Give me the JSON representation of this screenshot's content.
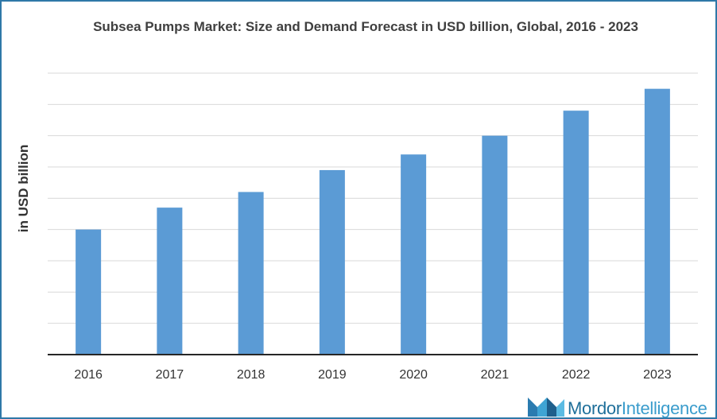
{
  "chart_data": {
    "type": "bar",
    "title": "Subsea Pumps Market: Size and Demand Forecast in USD billion, Global,  2016 - 2023",
    "xlabel": "",
    "ylabel": "in USD billion",
    "categories": [
      "2016",
      "2017",
      "2018",
      "2019",
      "2020",
      "2021",
      "2022",
      "2023"
    ],
    "values": [
      4.0,
      4.7,
      5.2,
      5.9,
      6.4,
      7.0,
      7.8,
      8.5
    ],
    "ylim": [
      0,
      9
    ],
    "grid": true,
    "bar_color": "#5b9bd5",
    "legend": "none"
  },
  "brand": {
    "name_bold": "Mordor",
    "name_light": "Intelligence",
    "logo_icon": "mordor-logo-icon",
    "colors": {
      "dark": "#1f6f9a",
      "light": "#3a9ccc"
    }
  }
}
